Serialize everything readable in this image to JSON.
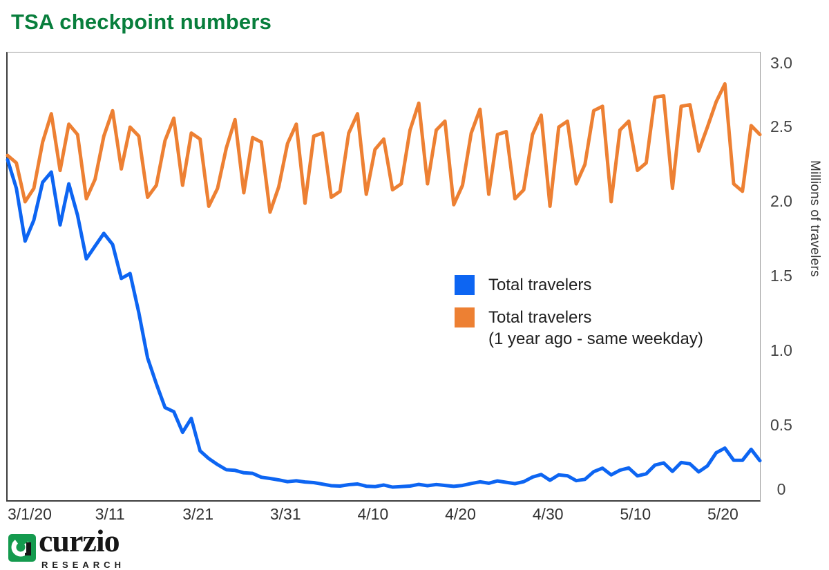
{
  "title": "TSA checkpoint numbers",
  "colors": {
    "travelers_2020": "#0d65f2",
    "travelers_2019": "#ed8033",
    "title_green": "#087e3c",
    "logo_green": "#149a4e"
  },
  "chart_data": {
    "type": "line",
    "title": "TSA checkpoint numbers",
    "ylabel_right": "Millions of travelers",
    "ylim": [
      0,
      3.0
    ],
    "grid": false,
    "legend_position": "middle-right",
    "y_ticks": [
      {
        "label": "3.0",
        "value": 3.0
      },
      {
        "label": "2.5",
        "value": 2.5
      },
      {
        "label": "2.0",
        "value": 2.0
      },
      {
        "label": "1.5",
        "value": 1.5
      },
      {
        "label": "1.0",
        "value": 1.0
      },
      {
        "label": "0.5",
        "value": 0.5
      },
      {
        "label": "0",
        "value": 0.0
      }
    ],
    "x_ticks": [
      {
        "label": "3/1/20",
        "day": 0
      },
      {
        "label": "3/11",
        "day": 10
      },
      {
        "label": "3/21",
        "day": 20
      },
      {
        "label": "3/31",
        "day": 30
      },
      {
        "label": "4/10",
        "day": 40
      },
      {
        "label": "4/20",
        "day": 50
      },
      {
        "label": "4/30",
        "day": 60
      },
      {
        "label": "5/10",
        "day": 70
      },
      {
        "label": "5/20",
        "day": 80
      }
    ],
    "dates": [
      "3/1",
      "3/2",
      "3/3",
      "3/4",
      "3/5",
      "3/6",
      "3/7",
      "3/8",
      "3/9",
      "3/10",
      "3/11",
      "3/12",
      "3/13",
      "3/14",
      "3/15",
      "3/16",
      "3/17",
      "3/18",
      "3/19",
      "3/20",
      "3/21",
      "3/22",
      "3/23",
      "3/24",
      "3/25",
      "3/26",
      "3/27",
      "3/28",
      "3/29",
      "3/30",
      "3/31",
      "4/1",
      "4/2",
      "4/3",
      "4/4",
      "4/5",
      "4/6",
      "4/7",
      "4/8",
      "4/9",
      "4/10",
      "4/11",
      "4/12",
      "4/13",
      "4/14",
      "4/15",
      "4/16",
      "4/17",
      "4/18",
      "4/19",
      "4/20",
      "4/21",
      "4/22",
      "4/23",
      "4/24",
      "4/25",
      "4/26",
      "4/27",
      "4/28",
      "4/29",
      "4/30",
      "5/1",
      "5/2",
      "5/3",
      "5/4",
      "5/5",
      "5/6",
      "5/7",
      "5/8",
      "5/9",
      "5/10",
      "5/11",
      "5/12",
      "5/13",
      "5/14",
      "5/15",
      "5/16",
      "5/17",
      "5/18",
      "5/19",
      "5/20",
      "5/21",
      "5/22",
      "5/23",
      "5/24",
      "5/25",
      "5/26"
    ],
    "series": [
      {
        "name": "Total travelers",
        "color": "#0d65f2",
        "values": [
          2.281,
          2.09,
          1.736,
          1.877,
          2.13,
          2.199,
          1.845,
          2.12,
          1.909,
          1.617,
          1.703,
          1.788,
          1.714,
          1.486,
          1.519,
          1.258,
          0.954,
          0.78,
          0.621,
          0.593,
          0.455,
          0.548,
          0.331,
          0.279,
          0.239,
          0.204,
          0.2,
          0.184,
          0.18,
          0.154,
          0.146,
          0.136,
          0.124,
          0.13,
          0.122,
          0.118,
          0.108,
          0.097,
          0.095,
          0.104,
          0.109,
          0.094,
          0.091,
          0.102,
          0.088,
          0.091,
          0.095,
          0.106,
          0.097,
          0.105,
          0.099,
          0.093,
          0.099,
          0.112,
          0.123,
          0.114,
          0.129,
          0.12,
          0.111,
          0.124,
          0.155,
          0.172,
          0.134,
          0.17,
          0.164,
          0.131,
          0.14,
          0.191,
          0.215,
          0.17,
          0.201,
          0.216,
          0.163,
          0.177,
          0.235,
          0.25,
          0.193,
          0.253,
          0.244,
          0.19,
          0.23,
          0.318,
          0.349,
          0.268,
          0.267,
          0.341,
          0.265
        ]
      },
      {
        "name": "Total travelers (1 year ago - same weekday)",
        "color": "#ed8033",
        "values": [
          2.31,
          2.26,
          2.0,
          2.09,
          2.4,
          2.59,
          2.21,
          2.52,
          2.45,
          2.02,
          2.15,
          2.44,
          2.61,
          2.22,
          2.5,
          2.44,
          2.03,
          2.11,
          2.41,
          2.56,
          2.11,
          2.46,
          2.42,
          1.97,
          2.09,
          2.36,
          2.55,
          2.06,
          2.43,
          2.4,
          1.93,
          2.1,
          2.39,
          2.52,
          1.99,
          2.44,
          2.46,
          2.03,
          2.07,
          2.46,
          2.59,
          2.05,
          2.35,
          2.42,
          2.08,
          2.12,
          2.48,
          2.66,
          2.12,
          2.48,
          2.54,
          1.98,
          2.11,
          2.46,
          2.62,
          2.05,
          2.45,
          2.47,
          2.02,
          2.08,
          2.45,
          2.58,
          1.97,
          2.5,
          2.54,
          2.12,
          2.25,
          2.61,
          2.64,
          2.0,
          2.48,
          2.54,
          2.21,
          2.26,
          2.7,
          2.71,
          2.09,
          2.64,
          2.65,
          2.34,
          2.5,
          2.67,
          2.79,
          2.12,
          2.07,
          2.51,
          2.45
        ]
      }
    ],
    "legend": {
      "item1_label": "Total travelers",
      "item2_label_line1": "Total travelers",
      "item2_label_line2": "(1 year ago - same weekday)"
    }
  },
  "footer": {
    "brand": "curzio",
    "brand_sub": "RESEARCH"
  }
}
